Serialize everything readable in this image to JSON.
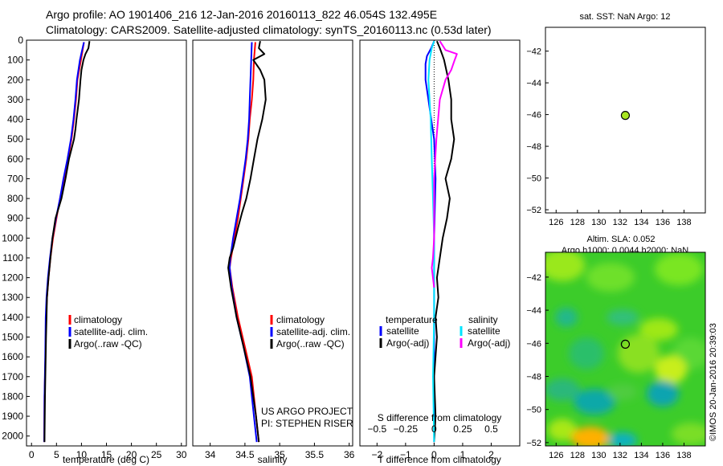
{
  "title": {
    "line1": "Argo profile: AO 1901406_216 12-Jan-2016 20160113_822 46.054S 132.495E",
    "line2": "Climatology: CARS2009. Satellite-adjusted climatology: synTS_20160113.nc (0.53d later)"
  },
  "colors": {
    "clim": "#ff0000",
    "sat": "#0000ff",
    "argo": "#000000",
    "cyan": "#00e5ff",
    "magenta": "#ff00ff",
    "marker": "#a8e620"
  },
  "depth_ticks": [
    0,
    100,
    200,
    300,
    400,
    500,
    600,
    700,
    800,
    900,
    1000,
    1100,
    1200,
    1300,
    1400,
    1500,
    1600,
    1700,
    1800,
    1900,
    2000
  ],
  "project": {
    "line1": "US ARGO PROJECT",
    "line2": "PI: STEPHEN RISER"
  },
  "watermark": "©IMOS 20-Jan-2016 20:39:03",
  "chart_data": [
    {
      "type": "line",
      "id": "temperature",
      "xlabel": "temperature (deg C)",
      "xlim": [
        -1,
        31
      ],
      "ylim": [
        2050,
        0
      ],
      "xticks": [
        0,
        5,
        10,
        15,
        20,
        25,
        30
      ],
      "legend": [
        "climatology",
        "satellite-adj. clim.",
        "Argo(..raw -QC)"
      ],
      "series": [
        {
          "name": "climatology",
          "color": "#ff0000",
          "x": [
            10.5,
            9.9,
            9.2,
            8.9,
            8.5,
            8.0,
            7.3,
            6.5,
            5.7,
            5.0,
            4.3,
            3.8,
            3.4,
            3.1,
            2.9,
            2.8,
            2.6,
            2.55
          ],
          "y": [
            10,
            100,
            200,
            300,
            400,
            500,
            600,
            700,
            800,
            900,
            1000,
            1100,
            1200,
            1300,
            1400,
            1600,
            1800,
            2030
          ]
        },
        {
          "name": "satellite-adj. clim.",
          "color": "#0000ff",
          "x": [
            10.5,
            9.7,
            9.1,
            8.8,
            8.4,
            7.9,
            7.2,
            6.4,
            5.7,
            4.9,
            4.2,
            3.7,
            3.3,
            3.0,
            2.85,
            2.75,
            2.6,
            2.55
          ],
          "y": [
            10,
            100,
            200,
            300,
            400,
            500,
            600,
            700,
            800,
            900,
            1000,
            1100,
            1200,
            1300,
            1400,
            1600,
            1800,
            2030
          ]
        },
        {
          "name": "Argo(..raw -QC)",
          "color": "#000000",
          "x": [
            11.6,
            11.4,
            10.8,
            10.4,
            10.0,
            9.8,
            9.5,
            9.0,
            8.8,
            8.5,
            8.0,
            7.5,
            6.8,
            6.0,
            5.4,
            4.8,
            4.2,
            3.8,
            3.4,
            3.1,
            2.9,
            2.7,
            2.6
          ],
          "y": [
            5,
            40,
            70,
            100,
            150,
            200,
            300,
            400,
            450,
            500,
            550,
            600,
            700,
            800,
            850,
            900,
            1000,
            1100,
            1200,
            1300,
            1500,
            1800,
            2030
          ]
        }
      ]
    },
    {
      "type": "line",
      "id": "salinity",
      "xlabel": "salinity",
      "xlim": [
        33.75,
        36.05
      ],
      "ylim": [
        2050,
        0
      ],
      "xticks": [
        34,
        34.5,
        35,
        35.5,
        36
      ],
      "xticklabels": [
        "34",
        "34.5",
        "35",
        "35.5",
        "36"
      ],
      "legend": [
        "climatology",
        "satellite-adj. clim.",
        "Argo(..raw -QC)"
      ],
      "series": [
        {
          "name": "climatology",
          "color": "#ff0000",
          "x": [
            34.65,
            34.63,
            34.62,
            34.6,
            34.57,
            34.55,
            34.52,
            34.48,
            34.44,
            34.4,
            34.35,
            34.3,
            34.28,
            34.32,
            34.4,
            34.5,
            34.6,
            34.66,
            34.7
          ],
          "y": [
            10,
            100,
            200,
            300,
            400,
            500,
            600,
            700,
            800,
            900,
            1000,
            1100,
            1150,
            1250,
            1400,
            1550,
            1700,
            1900,
            2030
          ]
        },
        {
          "name": "satellite-adj. clim.",
          "color": "#0000ff",
          "x": [
            34.6,
            34.59,
            34.58,
            34.57,
            34.56,
            34.54,
            34.51,
            34.47,
            34.43,
            34.38,
            34.33,
            34.29,
            34.28,
            34.31,
            34.38,
            34.48,
            34.57,
            34.63,
            34.67
          ],
          "y": [
            10,
            100,
            200,
            300,
            400,
            500,
            600,
            700,
            800,
            900,
            1000,
            1100,
            1150,
            1250,
            1400,
            1550,
            1700,
            1900,
            2030
          ]
        },
        {
          "name": "Argo(..raw -QC)",
          "color": "#000000",
          "x": [
            34.72,
            34.7,
            34.78,
            34.62,
            34.72,
            34.78,
            34.8,
            34.75,
            34.68,
            34.63,
            34.58,
            34.52,
            34.46,
            34.4,
            34.33,
            34.28,
            34.26,
            34.3,
            34.38,
            34.48,
            34.58,
            34.66,
            34.7
          ],
          "y": [
            5,
            40,
            70,
            100,
            150,
            200,
            300,
            400,
            500,
            600,
            700,
            800,
            870,
            950,
            1050,
            1100,
            1150,
            1250,
            1400,
            1550,
            1700,
            1900,
            2030
          ]
        }
      ]
    },
    {
      "type": "line",
      "id": "difference",
      "xlabel": "T difference from climatology",
      "x2label": "S difference from climatology",
      "xlim": [
        -2.6,
        3.0
      ],
      "ylim": [
        2050,
        0
      ],
      "xticks": [
        -2,
        -1,
        0,
        1,
        2
      ],
      "xticklabels": [
        "−2",
        "−1",
        "0",
        "1",
        "2"
      ],
      "x2ticks": [
        -0.5,
        -0.25,
        0,
        0.25,
        0.5
      ],
      "x2ticklabels": [
        "−0.5",
        "−0.25",
        "0",
        "0.25",
        "0.5"
      ],
      "x2_scale": 4,
      "legend_headers": [
        "temperature",
        "salinity"
      ],
      "legend": [
        "satellite",
        "Argo(-adj)",
        "satellite",
        "Argo(-adj)"
      ],
      "series": [
        {
          "name": "T satellite",
          "color": "#0000ff",
          "axis": "T",
          "x": [
            0.0,
            -0.1,
            -0.25,
            -0.3,
            -0.3,
            -0.2,
            -0.1,
            0.0,
            0.05,
            0.0,
            0.0,
            0.0
          ],
          "y": [
            5,
            40,
            80,
            120,
            200,
            300,
            400,
            500,
            700,
            1000,
            1500,
            2030
          ]
        },
        {
          "name": "T Argo(-adj)",
          "color": "#000000",
          "axis": "T",
          "x": [
            0.1,
            0.2,
            0.3,
            0.35,
            0.5,
            0.6,
            0.6,
            0.7,
            0.6,
            0.4,
            0.55,
            0.45,
            0.3,
            0.2,
            0.1,
            0.15,
            0.05,
            0.1,
            0.0,
            0.05,
            0.0
          ],
          "y": [
            5,
            40,
            80,
            100,
            200,
            300,
            400,
            500,
            600,
            700,
            800,
            900,
            1000,
            1100,
            1200,
            1300,
            1400,
            1500,
            1700,
            1900,
            2030
          ]
        },
        {
          "name": "S satellite",
          "color": "#00e5ff",
          "axis": "S",
          "x": [
            0.0,
            -0.02,
            -0.04,
            -0.05,
            -0.04,
            -0.03,
            -0.02,
            -0.01,
            0.0,
            0.0,
            -0.01,
            0.0
          ],
          "y": [
            5,
            40,
            100,
            200,
            300,
            400,
            600,
            800,
            1000,
            1400,
            1700,
            2030
          ]
        },
        {
          "name": "S Argo(-adj)",
          "color": "#ff00ff",
          "axis": "S",
          "x": [
            0.05,
            0.1,
            0.2,
            0.18,
            0.15,
            0.1,
            0.05,
            0.02,
            0.0,
            0.0,
            0.0,
            -0.01,
            -0.02,
            0.0
          ],
          "y": [
            5,
            50,
            70,
            100,
            150,
            200,
            300,
            500,
            700,
            900,
            1000,
            1100,
            1150,
            1250
          ]
        }
      ]
    },
    {
      "type": "scatter",
      "id": "location",
      "title": "sat. SST: NaN Argo: 12",
      "xlim": [
        125,
        140
      ],
      "ylim": [
        -52.2,
        -40.5
      ],
      "xticks": [
        126,
        128,
        130,
        132,
        134,
        136,
        138
      ],
      "yticks": [
        -42,
        -44,
        -46,
        -48,
        -50,
        -52
      ],
      "points": [
        {
          "lon": 132.495,
          "lat": -46.054
        }
      ]
    },
    {
      "type": "heatmap",
      "id": "altimetry",
      "title1": "Altim. SLA: 0.052",
      "title2": "Argo h1000: 0.0044 h2000: NaN",
      "xlim": [
        125,
        140
      ],
      "ylim": [
        -52.2,
        -40.5
      ],
      "xticks": [
        126,
        128,
        130,
        132,
        134,
        136,
        138
      ],
      "yticks": [
        -42,
        -44,
        -46,
        -48,
        -50,
        -52
      ],
      "points": [
        {
          "lon": 132.495,
          "lat": -46.054
        }
      ]
    }
  ]
}
